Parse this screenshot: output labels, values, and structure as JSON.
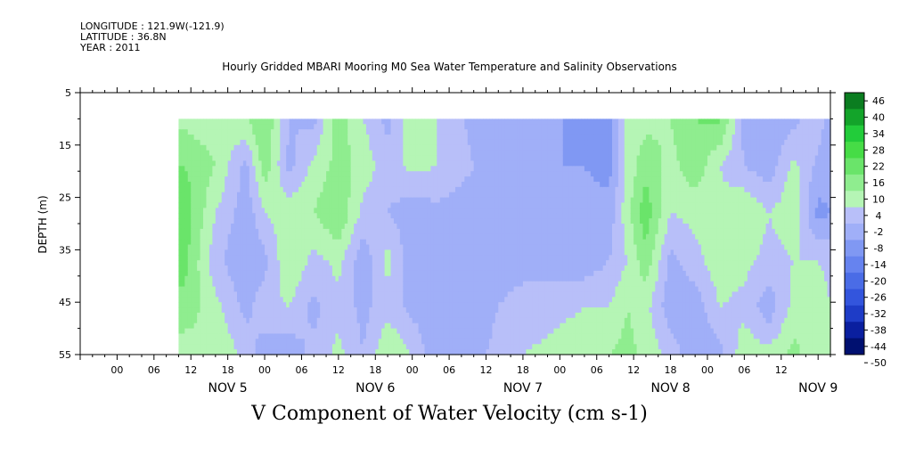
{
  "header": {
    "longitude": "LONGITUDE : 121.9W(-121.9)",
    "latitude": "LATITUDE : 36.8N",
    "year": "YEAR : 2011"
  },
  "chart_data": {
    "type": "heatmap",
    "title": "Hourly Gridded MBARI Mooring M0 Sea Water Temperature and Salinity Observations",
    "xlabel": "V Component of Water Velocity (cm s-1)",
    "ylabel": "DEPTH (m)",
    "y_ticks": [
      5,
      15,
      25,
      35,
      45,
      55
    ],
    "y_range": [
      5,
      55
    ],
    "x_hour_ticks": [
      "00",
      "06",
      "12",
      "18",
      "00",
      "06",
      "12",
      "18",
      "00",
      "06",
      "12",
      "18",
      "00",
      "06",
      "12",
      "18",
      "00",
      "06",
      "12"
    ],
    "x_day_labels": [
      "NOV  5",
      "NOV  6",
      "NOV  7",
      "NOV  8",
      "NOV  9"
    ],
    "x_range_hours": [
      -12,
      110
    ],
    "data_start_hour": 4,
    "data_end_hour": 110,
    "data_depth_range": [
      10,
      55
    ],
    "colorbar": {
      "levels": [
        -50,
        -44,
        -38,
        -32,
        -26,
        -20,
        -14,
        -8,
        -2,
        4,
        10,
        16,
        22,
        28,
        34,
        40,
        46
      ],
      "tick_labels": [
        "46",
        "40",
        "34",
        "28",
        "22",
        "16",
        "10",
        "4",
        "-2",
        "-8",
        "-14",
        "-20",
        "-26",
        "-32",
        "-38",
        "-44",
        "-50"
      ]
    },
    "profiles": [
      {
        "hour": 5,
        "v": [
          8,
          16,
          20,
          18,
          14,
          6
        ]
      },
      {
        "hour": 10,
        "v": [
          6,
          10,
          4,
          0,
          6,
          10
        ]
      },
      {
        "hour": 15,
        "v": [
          10,
          -4,
          -6,
          -8,
          -4,
          2
        ]
      },
      {
        "hour": 18,
        "v": [
          16,
          14,
          4,
          -4,
          2,
          -6
        ]
      },
      {
        "hour": 22,
        "v": [
          -2,
          -4,
          8,
          10,
          4,
          -6
        ]
      },
      {
        "hour": 26,
        "v": [
          -4,
          6,
          10,
          2,
          -4,
          0
        ]
      },
      {
        "hour": 30,
        "v": [
          14,
          12,
          16,
          6,
          2,
          6
        ]
      },
      {
        "hour": 34,
        "v": [
          4,
          8,
          2,
          -6,
          -4,
          -2
        ]
      },
      {
        "hour": 38,
        "v": [
          -4,
          0,
          -2,
          6,
          2,
          10
        ]
      },
      {
        "hour": 42,
        "v": [
          8,
          6,
          -6,
          -6,
          -4,
          4
        ]
      },
      {
        "hour": 46,
        "v": [
          4,
          4,
          -4,
          -6,
          -6,
          -8
        ]
      },
      {
        "hour": 52,
        "v": [
          -4,
          -2,
          -6,
          -6,
          -6,
          -4
        ]
      },
      {
        "hour": 60,
        "v": [
          -4,
          -8,
          -6,
          -6,
          2,
          4
        ]
      },
      {
        "hour": 70,
        "v": [
          -10,
          -8,
          -6,
          -6,
          4,
          6
        ]
      },
      {
        "hour": 74,
        "v": [
          -12,
          -10,
          -6,
          -2,
          4,
          10
        ]
      },
      {
        "hour": 77,
        "v": [
          6,
          6,
          8,
          4,
          10,
          12
        ]
      },
      {
        "hour": 80,
        "v": [
          8,
          14,
          20,
          14,
          6,
          8
        ]
      },
      {
        "hour": 84,
        "v": [
          10,
          8,
          4,
          -4,
          -6,
          2
        ]
      },
      {
        "hour": 88,
        "v": [
          16,
          14,
          6,
          2,
          -6,
          -8
        ]
      },
      {
        "hour": 92,
        "v": [
          18,
          4,
          6,
          8,
          4,
          -4
        ]
      },
      {
        "hour": 96,
        "v": [
          -4,
          -2,
          10,
          6,
          2,
          8
        ]
      },
      {
        "hour": 100,
        "v": [
          -8,
          -6,
          4,
          2,
          -6,
          6
        ]
      },
      {
        "hour": 104,
        "v": [
          -4,
          6,
          8,
          4,
          6,
          12
        ]
      },
      {
        "hour": 108,
        "v": [
          2,
          -4,
          -10,
          4,
          8,
          6
        ]
      },
      {
        "hour": 110,
        "v": [
          -6,
          -6,
          -8,
          2,
          4,
          6
        ]
      }
    ],
    "profile_depths": [
      10,
      19,
      28,
      37,
      46,
      55
    ]
  }
}
